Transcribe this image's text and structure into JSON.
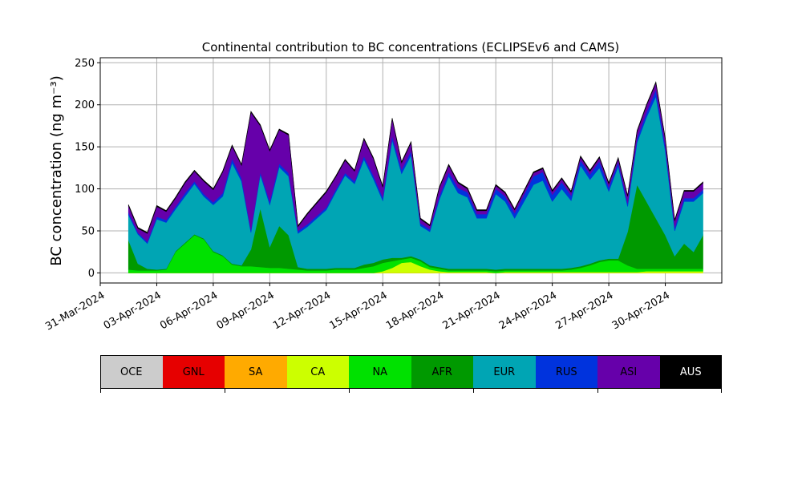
{
  "chart_data": {
    "type": "area",
    "stacked": true,
    "title": "Continental contribution to BC concentrations (ECLIPSEv6 and CAMS)",
    "ylabel": "BC concentration (ng m⁻³)",
    "xlabel": "",
    "ylim": [
      -12,
      256
    ],
    "xlim": [
      "2024-03-31T00:00",
      "2024-05-03T00:00"
    ],
    "yticks": [
      0,
      50,
      100,
      150,
      200,
      250
    ],
    "xticks": [
      "31-Mar-2024",
      "03-Apr-2024",
      "06-Apr-2024",
      "09-Apr-2024",
      "12-Apr-2024",
      "15-Apr-2024",
      "18-Apr-2024",
      "21-Apr-2024",
      "24-Apr-2024",
      "27-Apr-2024",
      "30-Apr-2024"
    ],
    "grid": true,
    "legend_position": "bottom",
    "x": [
      "2024-04-01T12:00",
      "2024-04-02T00:00",
      "2024-04-02T12:00",
      "2024-04-03T00:00",
      "2024-04-03T12:00",
      "2024-04-04T00:00",
      "2024-04-04T12:00",
      "2024-04-05T00:00",
      "2024-04-05T12:00",
      "2024-04-06T00:00",
      "2024-04-06T12:00",
      "2024-04-07T00:00",
      "2024-04-07T12:00",
      "2024-04-08T00:00",
      "2024-04-08T12:00",
      "2024-04-09T00:00",
      "2024-04-09T12:00",
      "2024-04-10T00:00",
      "2024-04-10T12:00",
      "2024-04-11T00:00",
      "2024-04-11T12:00",
      "2024-04-12T00:00",
      "2024-04-12T12:00",
      "2024-04-13T00:00",
      "2024-04-13T12:00",
      "2024-04-14T00:00",
      "2024-04-14T12:00",
      "2024-04-15T00:00",
      "2024-04-15T12:00",
      "2024-04-16T00:00",
      "2024-04-16T12:00",
      "2024-04-17T00:00",
      "2024-04-17T12:00",
      "2024-04-18T00:00",
      "2024-04-18T12:00",
      "2024-04-19T00:00",
      "2024-04-19T12:00",
      "2024-04-20T00:00",
      "2024-04-20T12:00",
      "2024-04-21T00:00",
      "2024-04-21T12:00",
      "2024-04-22T00:00",
      "2024-04-22T12:00",
      "2024-04-23T00:00",
      "2024-04-23T12:00",
      "2024-04-24T00:00",
      "2024-04-24T12:00",
      "2024-04-25T00:00",
      "2024-04-25T12:00",
      "2024-04-26T00:00",
      "2024-04-26T12:00",
      "2024-04-27T00:00",
      "2024-04-27T12:00",
      "2024-04-28T00:00",
      "2024-04-28T12:00",
      "2024-04-29T00:00",
      "2024-04-29T12:00",
      "2024-04-30T00:00",
      "2024-04-30T12:00",
      "2024-05-01T00:00",
      "2024-05-01T12:00",
      "2024-05-02T00:00"
    ],
    "series": [
      {
        "name": "OCE",
        "color": "#cccccc",
        "values": [
          0,
          0,
          0,
          0,
          0,
          0,
          0,
          0,
          0,
          0,
          0,
          0,
          0,
          0,
          0,
          0,
          0,
          0,
          0,
          0,
          0,
          0,
          0,
          0,
          0,
          0,
          0,
          0,
          0,
          0,
          0,
          0,
          0,
          0,
          0,
          0,
          0,
          0,
          0,
          0,
          0,
          0,
          0,
          0,
          0,
          0,
          0,
          0,
          0,
          0,
          0,
          0,
          0,
          0,
          0,
          0,
          0,
          0,
          0,
          0,
          0,
          0
        ]
      },
      {
        "name": "GNL",
        "color": "#e60000",
        "values": [
          0,
          0,
          0,
          0,
          0,
          0,
          0,
          0,
          0,
          0,
          0,
          0,
          0,
          0,
          0,
          0,
          0,
          0,
          0,
          0,
          0,
          0,
          0,
          0,
          0,
          0,
          0,
          0,
          0,
          0,
          0,
          0,
          0,
          0,
          0,
          0,
          0,
          0,
          0,
          0,
          0,
          0,
          0,
          0,
          0,
          0,
          0,
          0,
          0,
          0,
          0,
          0,
          0,
          0,
          0,
          0,
          0,
          0,
          0,
          0,
          0,
          0
        ]
      },
      {
        "name": "SA",
        "color": "#ffaa00",
        "values": [
          0,
          0,
          0,
          0,
          0,
          0,
          0,
          0,
          0,
          0,
          0,
          0,
          0,
          0,
          0,
          0,
          0,
          0,
          0,
          0,
          0,
          0,
          0,
          0,
          0,
          0,
          0,
          0,
          0,
          0,
          0,
          0,
          0,
          0,
          0,
          0,
          0,
          0,
          0,
          0,
          0,
          0,
          0,
          0,
          0,
          0,
          0,
          0,
          0,
          0,
          0,
          0,
          0,
          0,
          0,
          0,
          0,
          0,
          0,
          0,
          0,
          0
        ]
      },
      {
        "name": "CA",
        "color": "#ccff00",
        "values": [
          0,
          0,
          0,
          0,
          0,
          0,
          0,
          0,
          0,
          0,
          0,
          0,
          0,
          0,
          0,
          0,
          0,
          0,
          0,
          0,
          0,
          0,
          0,
          0,
          0,
          0,
          0,
          2,
          6,
          12,
          13,
          8,
          4,
          2,
          1,
          1,
          1,
          1,
          1,
          0,
          1,
          1,
          1,
          1,
          1,
          1,
          1,
          1,
          1,
          1,
          1,
          1,
          1,
          1,
          1,
          2,
          2,
          2,
          2,
          2,
          2,
          2
        ]
      },
      {
        "name": "NA",
        "color": "#00e100",
        "values": [
          4,
          3,
          3,
          3,
          4,
          25,
          35,
          45,
          40,
          25,
          20,
          10,
          8,
          8,
          7,
          6,
          6,
          5,
          4,
          3,
          3,
          3,
          4,
          4,
          4,
          6,
          8,
          10,
          8,
          4,
          5,
          6,
          3,
          3,
          2,
          2,
          2,
          2,
          2,
          2,
          2,
          2,
          2,
          2,
          2,
          2,
          2,
          3,
          5,
          8,
          12,
          14,
          14,
          8,
          4,
          3,
          3,
          3,
          3,
          3,
          3,
          3
        ]
      },
      {
        "name": "AFR",
        "color": "#009900",
        "values": [
          35,
          8,
          2,
          1,
          1,
          1,
          1,
          1,
          1,
          1,
          1,
          1,
          1,
          20,
          70,
          25,
          50,
          40,
          3,
          2,
          2,
          2,
          2,
          2,
          2,
          4,
          4,
          4,
          4,
          2,
          2,
          2,
          2,
          2,
          2,
          2,
          2,
          2,
          2,
          2,
          2,
          2,
          2,
          2,
          2,
          2,
          2,
          2,
          2,
          2,
          2,
          2,
          2,
          40,
          100,
          80,
          60,
          40,
          15,
          30,
          20,
          40
        ]
      },
      {
        "name": "EUR",
        "color": "#00a5b4",
        "values": [
          30,
          35,
          30,
          60,
          55,
          50,
          55,
          60,
          50,
          55,
          70,
          120,
          100,
          20,
          40,
          50,
          70,
          70,
          40,
          50,
          60,
          70,
          90,
          110,
          100,
          125,
          100,
          70,
          140,
          100,
          120,
          40,
          40,
          80,
          110,
          90,
          85,
          60,
          60,
          90,
          80,
          60,
          80,
          100,
          105,
          80,
          95,
          80,
          120,
          100,
          110,
          80,
          110,
          30,
          50,
          100,
          145,
          100,
          30,
          50,
          60,
          50
        ]
      },
      {
        "name": "RUS",
        "color": "#0033dd",
        "values": [
          3,
          2,
          2,
          3,
          3,
          3,
          4,
          3,
          3,
          3,
          4,
          5,
          4,
          3,
          3,
          4,
          4,
          4,
          3,
          3,
          3,
          3,
          3,
          3,
          3,
          4,
          4,
          4,
          5,
          5,
          5,
          3,
          3,
          4,
          5,
          6,
          6,
          5,
          5,
          6,
          6,
          6,
          8,
          10,
          10,
          8,
          8,
          6,
          6,
          6,
          8,
          5,
          5,
          4,
          5,
          6,
          8,
          6,
          4,
          4,
          4,
          4
        ]
      },
      {
        "name": "ASI",
        "color": "#6600aa",
        "values": [
          8,
          5,
          10,
          12,
          10,
          10,
          12,
          12,
          15,
          15,
          25,
          15,
          15,
          140,
          55,
          60,
          40,
          45,
          5,
          12,
          15,
          18,
          15,
          15,
          12,
          20,
          20,
          12,
          20,
          8,
          10,
          5,
          4,
          10,
          8,
          6,
          4,
          4,
          4,
          4,
          4,
          4,
          4,
          4,
          4,
          4,
          4,
          4,
          4,
          4,
          4,
          4,
          4,
          8,
          8,
          8,
          8,
          8,
          8,
          8,
          8,
          8
        ]
      },
      {
        "name": "AUS",
        "color": "#000000",
        "values": [
          1.2,
          1.2,
          1.2,
          1.2,
          1.2,
          1.2,
          1.2,
          1.2,
          1.2,
          1.2,
          1.2,
          1.2,
          1.2,
          1.2,
          1.2,
          1.2,
          1.2,
          1.2,
          1.2,
          1.2,
          1.2,
          1.2,
          1.2,
          1.2,
          1.2,
          1.2,
          1.2,
          1.2,
          1.2,
          1.2,
          1.2,
          1.2,
          1.2,
          1.2,
          1.2,
          1.2,
          1.2,
          1.2,
          1.2,
          1.2,
          1.2,
          1.2,
          1.2,
          1.2,
          1.2,
          1.2,
          1.2,
          1.2,
          1.2,
          1.2,
          1.2,
          1.2,
          1.2,
          1.2,
          1.2,
          1.2,
          1.2,
          1.2,
          1.2,
          1.2,
          1.2,
          1.2
        ]
      }
    ]
  }
}
